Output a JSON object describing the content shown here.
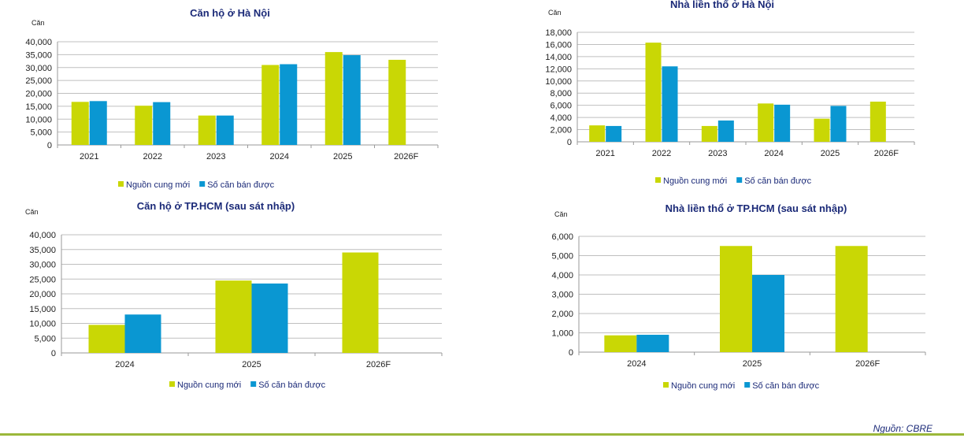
{
  "colors": {
    "supply": "#c9d705",
    "sold": "#0a97d2",
    "grid": "#bfbfbf",
    "title": "#1b2a78"
  },
  "source_label": "Nguồn: CBRE",
  "chart_data": [
    {
      "type": "bar",
      "title": "Căn hộ ở Hà Nội",
      "unit_label": "Căn",
      "categories": [
        "2021",
        "2022",
        "2023",
        "2024",
        "2025",
        "2026F"
      ],
      "series": [
        {
          "name": "Nguồn cung mới",
          "values": [
            16700,
            15200,
            11400,
            31000,
            36000,
            33000
          ]
        },
        {
          "name": "Số căn bán được",
          "values": [
            17000,
            16600,
            11400,
            31300,
            34800,
            null
          ]
        }
      ],
      "ylim": [
        0,
        40000
      ],
      "yticks": [
        0,
        5000,
        10000,
        15000,
        20000,
        25000,
        30000,
        35000,
        40000
      ],
      "grid": true,
      "legend": "bottom"
    },
    {
      "type": "bar",
      "title": "Nhà liền thổ ở Hà Nội",
      "unit_label": "Căn",
      "categories": [
        "2021",
        "2022",
        "2023",
        "2024",
        "2025",
        "2026F"
      ],
      "series": [
        {
          "name": "Nguồn cung mới",
          "values": [
            2700,
            16300,
            2600,
            6300,
            3800,
            6600
          ]
        },
        {
          "name": "Số căn bán được",
          "values": [
            2600,
            12400,
            3500,
            6100,
            5900,
            null
          ]
        }
      ],
      "ylim": [
        0,
        18000
      ],
      "yticks": [
        0,
        2000,
        4000,
        6000,
        8000,
        10000,
        12000,
        14000,
        16000,
        18000
      ],
      "grid": true,
      "legend": "bottom"
    },
    {
      "type": "bar",
      "title": "Căn hộ ở TP.HCM (sau sát nhập)",
      "unit_label": "Căn",
      "categories": [
        "2024",
        "2025",
        "2026F"
      ],
      "series": [
        {
          "name": "Nguồn cung mới",
          "values": [
            9500,
            24500,
            34000
          ]
        },
        {
          "name": "Số căn bán được",
          "values": [
            13000,
            23500,
            null
          ]
        }
      ],
      "ylim": [
        0,
        40000
      ],
      "yticks": [
        0,
        5000,
        10000,
        15000,
        20000,
        25000,
        30000,
        35000,
        40000
      ],
      "grid": true,
      "legend": "bottom"
    },
    {
      "type": "bar",
      "title": "Nhà liền thổ ở TP.HCM (sau sát nhập)",
      "unit_label": "Căn",
      "categories": [
        "2024",
        "2025",
        "2026F"
      ],
      "series": [
        {
          "name": "Nguồn cung mới",
          "values": [
            870,
            5500,
            5500
          ]
        },
        {
          "name": "Số căn bán được",
          "values": [
            900,
            4000,
            null
          ]
        }
      ],
      "ylim": [
        0,
        6000
      ],
      "yticks": [
        0,
        1000,
        2000,
        3000,
        4000,
        5000,
        6000
      ],
      "grid": true,
      "legend": "bottom"
    }
  ]
}
